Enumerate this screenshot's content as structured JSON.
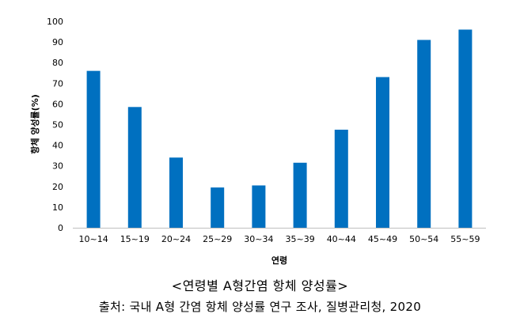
{
  "chart_data": {
    "type": "bar",
    "categories": [
      "10~14",
      "15~19",
      "20~24",
      "25~29",
      "30~34",
      "35~39",
      "40~44",
      "45~49",
      "50~54",
      "55~59"
    ],
    "values": [
      76,
      58.5,
      34,
      19.5,
      20.5,
      31.5,
      47.5,
      73,
      91,
      96
    ],
    "title": "",
    "xlabel": "연령",
    "ylabel": "항체 양성률(%)",
    "ylim": [
      0,
      100
    ],
    "yticks": [
      0,
      10,
      20,
      30,
      40,
      50,
      60,
      70,
      80,
      90,
      100
    ],
    "grid": false,
    "legend": "none",
    "bar_color": "#0070C0"
  },
  "caption": {
    "title": "<연령별 A형간염 항체 양성률>",
    "source": "출처: 국내 A형 간염 항체 양성률 연구 조사, 질병관리청, 2020"
  }
}
